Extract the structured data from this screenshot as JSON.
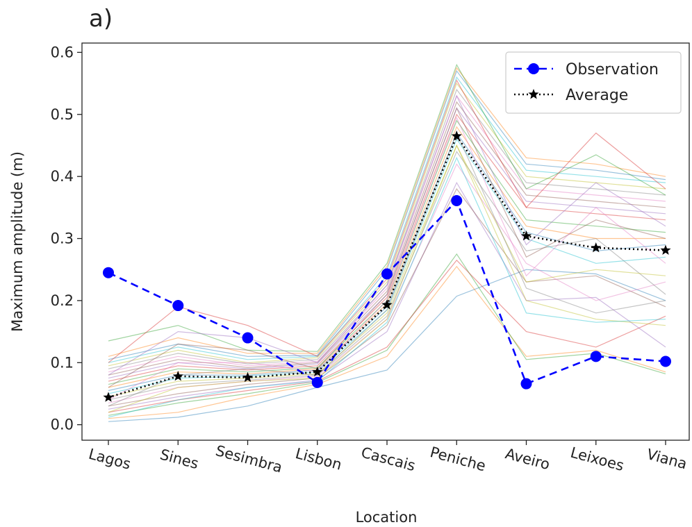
{
  "chart_data": {
    "type": "line",
    "panel_label": "a)",
    "title": "",
    "xlabel": "Location",
    "ylabel": "Maximum amplitude (m)",
    "categories": [
      "Lagos",
      "Sines",
      "Sesimbra",
      "Lisbon",
      "Cascais",
      "Peniche",
      "Aveiro",
      "Leixoes",
      "Viana"
    ],
    "ylim": [
      -0.025,
      0.615
    ],
    "yticks": [
      "0.0",
      "0.1",
      "0.2",
      "0.3",
      "0.4",
      "0.5",
      "0.6"
    ],
    "grid": false,
    "legend_position": "top-right",
    "series": [
      {
        "name": "Observation",
        "style": "dashed",
        "marker": "circle",
        "color": "#0000ff",
        "values": [
          0.245,
          0.192,
          0.14,
          0.068,
          0.243,
          0.361,
          0.066,
          0.11,
          0.102
        ]
      },
      {
        "name": "Average",
        "style": "dotted",
        "marker": "star",
        "color": "#000000",
        "values": [
          0.044,
          0.078,
          0.076,
          0.085,
          0.193,
          0.465,
          0.304,
          0.285,
          0.281
        ]
      }
    ],
    "ensemble": {
      "opacity": 0.45,
      "colors": [
        "#1f77b4",
        "#ff7f0e",
        "#2ca02c",
        "#d62728",
        "#9467bd",
        "#8c564b",
        "#e377c2",
        "#7f7f7f",
        "#bcbd22",
        "#17becf"
      ],
      "members": [
        [
          0.005,
          0.012,
          0.03,
          0.06,
          0.088,
          0.207,
          0.25,
          0.243,
          0.2
        ],
        [
          0.01,
          0.02,
          0.045,
          0.065,
          0.11,
          0.255,
          0.11,
          0.12,
          0.085
        ],
        [
          0.015,
          0.035,
          0.05,
          0.068,
          0.12,
          0.275,
          0.105,
          0.115,
          0.082
        ],
        [
          0.02,
          0.04,
          0.055,
          0.07,
          0.125,
          0.265,
          0.15,
          0.125,
          0.175
        ],
        [
          0.025,
          0.045,
          0.06,
          0.072,
          0.15,
          0.39,
          0.2,
          0.205,
          0.125
        ],
        [
          0.03,
          0.05,
          0.065,
          0.075,
          0.16,
          0.38,
          0.23,
          0.24,
          0.19
        ],
        [
          0.035,
          0.06,
          0.07,
          0.078,
          0.17,
          0.42,
          0.26,
          0.2,
          0.23
        ],
        [
          0.04,
          0.065,
          0.072,
          0.08,
          0.175,
          0.44,
          0.28,
          0.3,
          0.21
        ],
        [
          0.045,
          0.07,
          0.075,
          0.082,
          0.18,
          0.45,
          0.23,
          0.25,
          0.24
        ],
        [
          0.05,
          0.075,
          0.078,
          0.085,
          0.185,
          0.46,
          0.3,
          0.26,
          0.27
        ],
        [
          0.055,
          0.08,
          0.08,
          0.088,
          0.19,
          0.47,
          0.31,
          0.28,
          0.29
        ],
        [
          0.06,
          0.085,
          0.082,
          0.09,
          0.195,
          0.48,
          0.32,
          0.3,
          0.3
        ],
        [
          0.065,
          0.09,
          0.085,
          0.092,
          0.2,
          0.49,
          0.33,
          0.32,
          0.31
        ],
        [
          0.07,
          0.095,
          0.088,
          0.095,
          0.205,
          0.5,
          0.35,
          0.34,
          0.33
        ],
        [
          0.075,
          0.1,
          0.09,
          0.098,
          0.21,
          0.51,
          0.36,
          0.35,
          0.34
        ],
        [
          0.08,
          0.105,
          0.092,
          0.1,
          0.215,
          0.52,
          0.37,
          0.36,
          0.35
        ],
        [
          0.085,
          0.11,
          0.095,
          0.102,
          0.22,
          0.53,
          0.38,
          0.37,
          0.36
        ],
        [
          0.09,
          0.115,
          0.098,
          0.105,
          0.225,
          0.54,
          0.39,
          0.38,
          0.37
        ],
        [
          0.095,
          0.12,
          0.1,
          0.108,
          0.23,
          0.55,
          0.4,
          0.39,
          0.38
        ],
        [
          0.1,
          0.125,
          0.105,
          0.11,
          0.24,
          0.56,
          0.41,
          0.4,
          0.39
        ],
        [
          0.105,
          0.13,
          0.11,
          0.112,
          0.25,
          0.57,
          0.42,
          0.41,
          0.395
        ],
        [
          0.11,
          0.14,
          0.115,
          0.115,
          0.255,
          0.575,
          0.43,
          0.42,
          0.4
        ],
        [
          0.135,
          0.16,
          0.12,
          0.118,
          0.26,
          0.58,
          0.38,
          0.435,
          0.37
        ],
        [
          0.1,
          0.19,
          0.16,
          0.11,
          0.235,
          0.555,
          0.35,
          0.47,
          0.38
        ],
        [
          0.08,
          0.15,
          0.14,
          0.1,
          0.225,
          0.53,
          0.29,
          0.39,
          0.32
        ],
        [
          0.06,
          0.13,
          0.12,
          0.09,
          0.21,
          0.51,
          0.27,
          0.33,
          0.3
        ],
        [
          0.04,
          0.1,
          0.1,
          0.085,
          0.2,
          0.495,
          0.24,
          0.35,
          0.26
        ],
        [
          0.03,
          0.08,
          0.09,
          0.08,
          0.185,
          0.47,
          0.22,
          0.18,
          0.2
        ],
        [
          0.02,
          0.06,
          0.07,
          0.075,
          0.17,
          0.45,
          0.2,
          0.17,
          0.16
        ],
        [
          0.012,
          0.04,
          0.06,
          0.07,
          0.165,
          0.43,
          0.18,
          0.165,
          0.17
        ]
      ]
    }
  }
}
